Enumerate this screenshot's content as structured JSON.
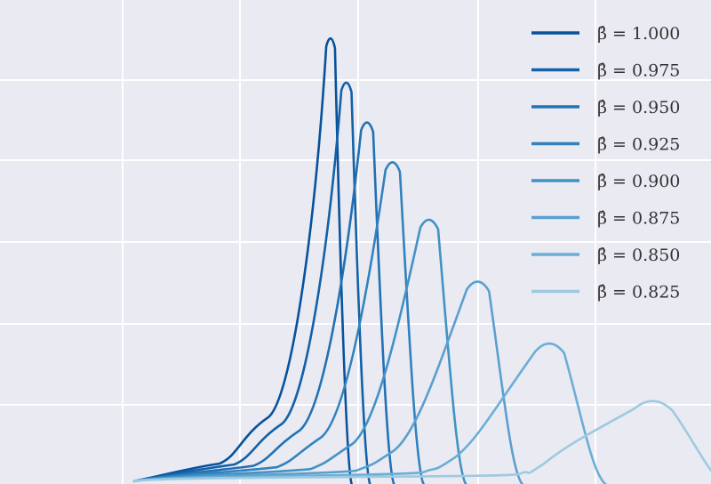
{
  "chart_data": {
    "type": "line",
    "grid": true,
    "legend_position": "top-right",
    "background_color": "#eaeaf2",
    "grid_color": "#ffffff",
    "series": [
      {
        "name": "β̂ = 1.000",
        "color": "#08519c",
        "peak_x": 0.0,
        "peak_y": 1.0,
        "shoulder_y": 0.145,
        "left_y": 0.04
      },
      {
        "name": "β̂ = 0.975",
        "color": "#1361a8",
        "peak_x": 0.13,
        "peak_y": 0.9,
        "shoulder_y": 0.13,
        "left_y": 0.038
      },
      {
        "name": "β̂ = 0.950",
        "color": "#2171b5",
        "peak_x": 0.3,
        "peak_y": 0.81,
        "shoulder_y": 0.115,
        "left_y": 0.035
      },
      {
        "name": "β̂ = 0.925",
        "color": "#3182bd",
        "peak_x": 0.51,
        "peak_y": 0.72,
        "shoulder_y": 0.1,
        "left_y": 0.032
      },
      {
        "name": "β̂ = 0.900",
        "color": "#4292c6",
        "peak_x": 0.81,
        "peak_y": 0.59,
        "shoulder_y": 0.085,
        "left_y": 0.028
      },
      {
        "name": "β̂ = 0.875",
        "color": "#5a9fd0",
        "peak_x": 1.21,
        "peak_y": 0.45,
        "shoulder_y": 0.07,
        "left_y": 0.024
      },
      {
        "name": "β̂ = 0.850",
        "color": "#6baed6",
        "peak_x": 1.8,
        "peak_y": 0.31,
        "shoulder_y": 0.055,
        "left_y": 0.02
      },
      {
        "name": "β̂ = 0.825",
        "color": "#9ecae1",
        "peak_x": 2.65,
        "peak_y": 0.18,
        "shoulder_y": 0.04,
        "left_y": 0.016
      }
    ]
  }
}
